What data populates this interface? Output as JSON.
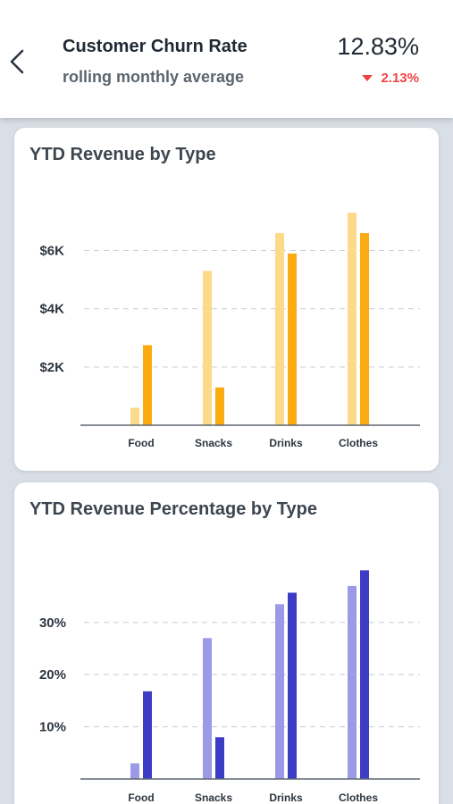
{
  "header": {
    "title": "Customer Churn Rate",
    "subtitle": "rolling monthly average",
    "metric_value": "12.83%",
    "metric_change": "2.13%",
    "change_direction_icon": "triangle-down-icon",
    "back_icon": "chevron-left-icon"
  },
  "colors": {
    "background": "#d9dfe6",
    "negative": "#ef4444",
    "revenue_light": "#fdd98a",
    "revenue_dark": "#fbab0f",
    "percent_light": "#9a9ae6",
    "percent_dark": "#3c3cc4"
  },
  "chart_data": [
    {
      "type": "bar",
      "title": "YTD Revenue by Type",
      "categories": [
        "Food",
        "Snacks",
        "Drinks",
        "Clothes"
      ],
      "series": [
        {
          "values": [
            600,
            5300,
            6600,
            7300
          ],
          "color": "#fdd98a"
        },
        {
          "values": [
            2750,
            1300,
            5900,
            6600
          ],
          "color": "#fbab0f"
        }
      ],
      "ylim": [
        0,
        8500
      ],
      "yticks": [
        2000,
        4000,
        6000
      ],
      "ytick_labels": [
        "$2K",
        "$4K",
        "$6K"
      ],
      "grid": true,
      "legend": "none"
    },
    {
      "type": "bar",
      "title": "YTD Revenue Percentage by Type",
      "categories": [
        "Food",
        "Snacks",
        "Drinks",
        "Clothes"
      ],
      "series": [
        {
          "values": [
            3,
            27,
            33.5,
            37
          ],
          "color": "#9a9ae6"
        },
        {
          "values": [
            16.8,
            8,
            35.7,
            40
          ],
          "color": "#3c3cc4"
        }
      ],
      "ylim": [
        0,
        44
      ],
      "yticks": [
        10,
        20,
        30
      ],
      "ytick_labels": [
        "10%",
        "20%",
        "30%"
      ],
      "grid": true,
      "legend": "none"
    }
  ]
}
